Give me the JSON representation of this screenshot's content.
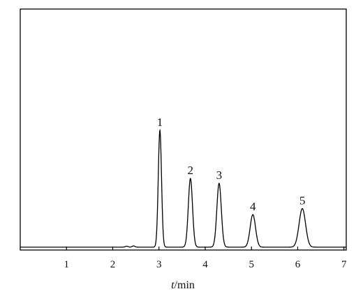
{
  "chart_data": {
    "type": "line",
    "title": "",
    "xlabel_italic": "t",
    "xlabel_rest": "/min",
    "ylabel": "",
    "xlim": [
      0,
      7.05
    ],
    "ylim": [
      0,
      1.0
    ],
    "x_ticks": [
      "1",
      "2",
      "3",
      "4",
      "5",
      "6",
      "7"
    ],
    "y_ticks": [],
    "grid": false,
    "legend": "none",
    "line_color": "#000000",
    "baseline": 0.012,
    "peaks": [
      {
        "label": "1",
        "x": 3.02,
        "height": 0.485,
        "width": 0.035
      },
      {
        "label": "2",
        "x": 3.68,
        "height": 0.285,
        "width": 0.045
      },
      {
        "label": "3",
        "x": 4.3,
        "height": 0.265,
        "width": 0.048
      },
      {
        "label": "4",
        "x": 5.03,
        "height": 0.135,
        "width": 0.058
      },
      {
        "label": "5",
        "x": 6.1,
        "height": 0.16,
        "width": 0.07
      }
    ],
    "minor_bumps": [
      {
        "x": 2.3,
        "height": 0.004,
        "width": 0.03
      },
      {
        "x": 2.45,
        "height": 0.005,
        "width": 0.03
      }
    ]
  }
}
